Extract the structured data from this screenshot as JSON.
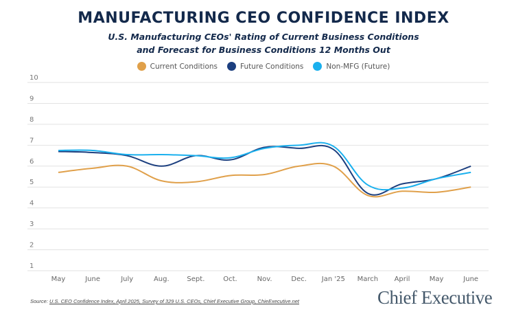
{
  "title": "MANUFACTURING CEO CONFIDENCE INDEX",
  "subtitle_line1": "U.S. Manufacturing CEOs' Rating of Current Business Conditions",
  "subtitle_line2": "and Forecast for Business Conditions 12 Months Out",
  "source_prefix": "Source: ",
  "source": "U.S. CEO Confidence Index, April 2025, Survey of 329 U.S. CEOs, Chief Executive Group, ChieExecutive.net",
  "logo": "Chief Executive",
  "chart_data": {
    "type": "line",
    "categories": [
      "May",
      "June",
      "July",
      "Aug.",
      "Sept.",
      "Oct.",
      "Nov.",
      "Dec.",
      "Jan '25",
      "March",
      "April",
      "May",
      "June"
    ],
    "ylim": [
      1,
      10
    ],
    "yticks": [
      1,
      2,
      3,
      4,
      5,
      6,
      7,
      8,
      9,
      10
    ],
    "grid": true,
    "legend": "top",
    "series": [
      {
        "name": "Current Conditions",
        "color": "#e0a04a",
        "values": [
          5.7,
          5.9,
          6.0,
          5.3,
          5.25,
          5.55,
          5.6,
          6.0,
          6.0,
          4.6,
          4.8,
          4.75,
          5.0
        ]
      },
      {
        "name": "Future Conditions",
        "color": "#1c3f7f",
        "values": [
          6.7,
          6.65,
          6.5,
          6.0,
          6.5,
          6.3,
          6.9,
          6.85,
          6.8,
          4.7,
          5.15,
          5.4,
          6.0
        ]
      },
      {
        "name": "Non-MFG (Future)",
        "color": "#1ab0ee",
        "values": [
          6.75,
          6.75,
          6.55,
          6.55,
          6.5,
          6.4,
          6.85,
          7.0,
          6.95,
          5.1,
          4.95,
          5.4,
          5.7
        ]
      }
    ]
  }
}
